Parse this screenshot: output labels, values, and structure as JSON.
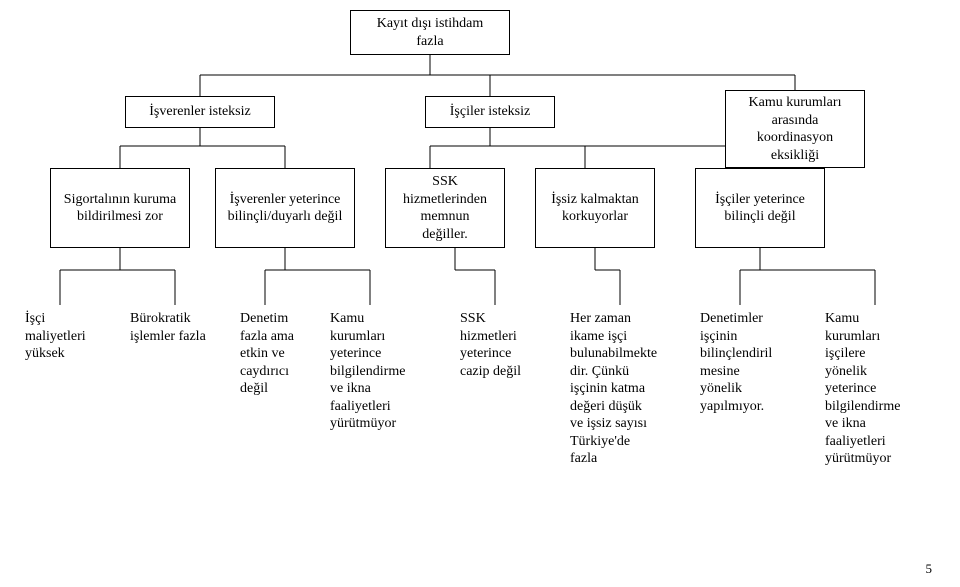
{
  "type": "tree",
  "background_color": "#ffffff",
  "edge_color": "#000000",
  "text_color": "#000000",
  "font_family": "Times New Roman",
  "font_size": 14,
  "page_number": "5",
  "root": {
    "label": "Kayıt dışı istihdam\nfazla"
  },
  "level1": [
    {
      "label": "İşverenler isteksiz"
    },
    {
      "label": "İşçiler isteksiz"
    },
    {
      "label": "Kamu kurumları\narasında\nkoordinasyon\neksikliği"
    }
  ],
  "level2": [
    {
      "label": "Sigortalının kuruma\nbildirilmesi zor"
    },
    {
      "label": "İşverenler yeterince\nbilinçli/duyarlı değil"
    },
    {
      "label": "SSK\nhizmetlerinden\nmemnun\ndeğiller."
    },
    {
      "label": "İşsiz kalmaktan\nkorkuyorlar"
    },
    {
      "label": "İşçiler yeterince\nbilinçli değil"
    }
  ],
  "leaves": [
    {
      "label": "İşçi\nmaliyetleri\nyüksek"
    },
    {
      "label": "Bürokratik\nişlemler fazla"
    },
    {
      "label": "Denetim\nfazla ama\netkin ve\ncaydırıcı\ndeğil"
    },
    {
      "label": "Kamu\nkurumları\nyeterince\nbilgilendirme\nve ikna\nfaaliyetleri\nyürütmüyor"
    },
    {
      "label": "SSK\nhizmetleri\nyeterince\ncazip değil"
    },
    {
      "label": "Her zaman\nikame işçi\nbulunabilmekte\ndir. Çünkü\nişçinin katma\ndeğeri düşük\nve işsiz sayısı\nTürkiye'de\nfazla"
    },
    {
      "label": "Denetimler\nişçinin\nbilinçlendiril\nmesine\nyönelik\nyapılmıyor."
    },
    {
      "label": "Kamu\nkurumları\nişçilere\nyönelik\nyeterince\nbilgilendirme\nve ikna\nfaaliyetleri\nyürütmüyor"
    }
  ]
}
